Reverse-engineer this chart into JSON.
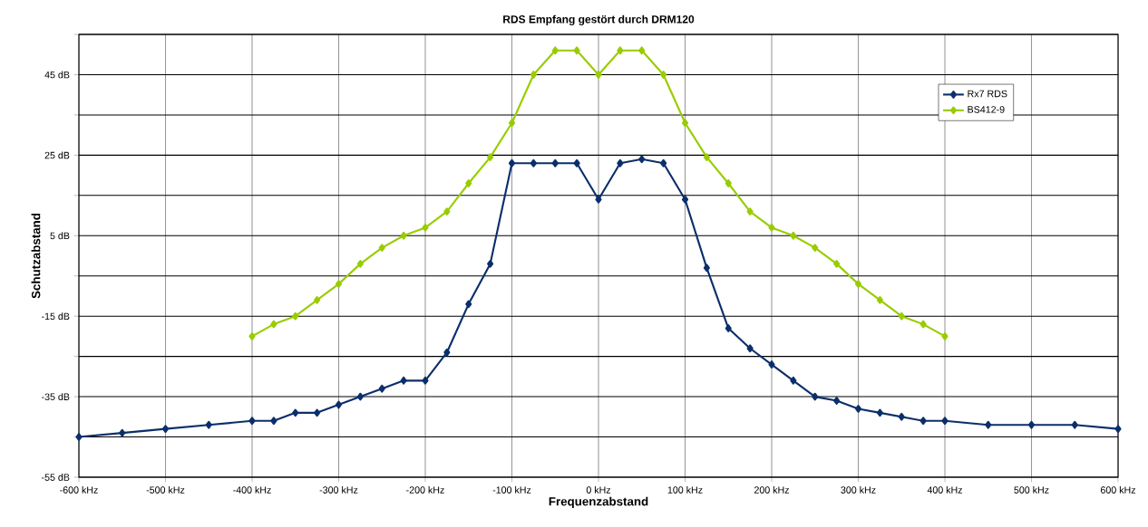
{
  "chart_data": {
    "type": "line",
    "title": "RDS Empfang gestört durch DRM120",
    "xlabel": "Frequenzabstand",
    "ylabel": "Schutzabstand",
    "x": [
      -600,
      -550,
      -500,
      -450,
      -400,
      -375,
      -350,
      -325,
      -300,
      -275,
      -250,
      -225,
      -200,
      -175,
      -150,
      -125,
      -100,
      -75,
      -50,
      -25,
      0,
      25,
      50,
      75,
      100,
      125,
      150,
      175,
      200,
      225,
      250,
      275,
      300,
      325,
      350,
      375,
      400,
      450,
      500,
      550,
      600
    ],
    "series": [
      {
        "name": "Rx7 RDS",
        "color": "#0b2f6b",
        "values": [
          -45,
          -44,
          -43,
          -42,
          -41,
          -41,
          -39,
          -39,
          -37,
          -35,
          -33,
          -31,
          -31,
          -24,
          -12,
          -2,
          23,
          23,
          23,
          23,
          14,
          23,
          24,
          23,
          14,
          -3,
          -18,
          -23,
          -27,
          -31,
          -35,
          -36,
          -38,
          -39,
          -40,
          -41,
          -41,
          -42,
          -42,
          -42,
          -43
        ]
      },
      {
        "name": "BS412-9",
        "color": "#99cc00",
        "x": [
          -400,
          -375,
          -350,
          -325,
          -300,
          -275,
          -250,
          -225,
          -200,
          -175,
          -150,
          -125,
          -100,
          -75,
          -50,
          -25,
          0,
          25,
          50,
          75,
          100,
          125,
          150,
          175,
          200,
          225,
          250,
          275,
          300,
          325,
          350,
          375,
          400
        ],
        "values": [
          -20,
          -17,
          -15,
          -11,
          -7,
          -2,
          2,
          5,
          7,
          11,
          18,
          24.5,
          33,
          45,
          51,
          51,
          45,
          51,
          51,
          45,
          33,
          24.5,
          18,
          11,
          7,
          5,
          2,
          -2,
          -7,
          -11,
          -15,
          -17,
          -20
        ]
      }
    ],
    "xlim": [
      -600,
      600
    ],
    "ylim": [
      -55,
      55
    ],
    "xticks": [
      {
        "value": -600,
        "label": "-600 kHz"
      },
      {
        "value": -500,
        "label": "-500 kHz"
      },
      {
        "value": -400,
        "label": "-400 kHz"
      },
      {
        "value": -300,
        "label": "-300 kHz"
      },
      {
        "value": -200,
        "label": "-200 kHz"
      },
      {
        "value": -100,
        "label": "-100 kHz"
      },
      {
        "value": 0,
        "label": "0 kHz"
      },
      {
        "value": 100,
        "label": "100 kHz"
      },
      {
        "value": 200,
        "label": "200 kHz"
      },
      {
        "value": 300,
        "label": "300 kHz"
      },
      {
        "value": 400,
        "label": "400 kHz"
      },
      {
        "value": 500,
        "label": "500 kHz"
      },
      {
        "value": 600,
        "label": "600 kHz"
      }
    ],
    "yticks": [
      {
        "value": -55,
        "label": "-55 dB"
      },
      {
        "value": -45,
        "label": null
      },
      {
        "value": -35,
        "label": "-35 dB"
      },
      {
        "value": -25,
        "label": null
      },
      {
        "value": -15,
        "label": "-15 dB"
      },
      {
        "value": -5,
        "label": null
      },
      {
        "value": 5,
        "label": "5 dB"
      },
      {
        "value": 15,
        "label": null
      },
      {
        "value": 25,
        "label": "25 dB"
      },
      {
        "value": 35,
        "label": null
      },
      {
        "value": 45,
        "label": "45 dB"
      },
      {
        "value": 55,
        "label": null
      }
    ],
    "grid": true,
    "legend": "top right",
    "marker": "diamond",
    "line_style": "solid"
  }
}
